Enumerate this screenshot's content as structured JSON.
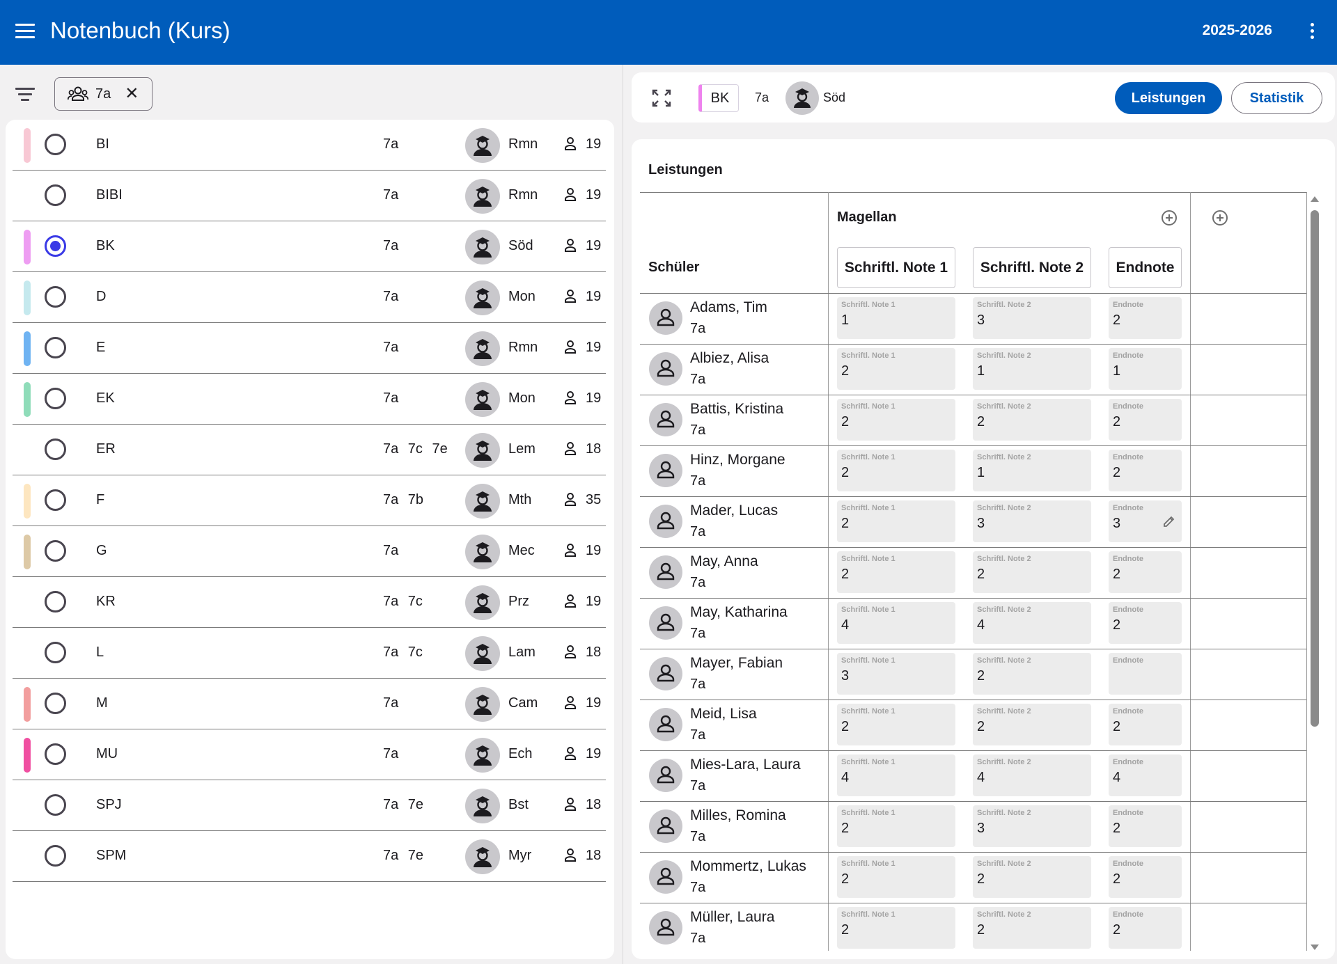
{
  "app": {
    "title": "Notenbuch (Kurs)",
    "school_year": "2025-2026",
    "icons": {
      "menu": "menu-icon",
      "more": "more-vert-icon"
    },
    "colors": {
      "primary": "#005cbb",
      "selected": "#3a3ae6"
    }
  },
  "filter": {
    "chip_label": "7a",
    "icons": {
      "filter": "filter-list-icon",
      "group": "group-icon",
      "close": "close-icon"
    }
  },
  "courses": [
    {
      "subject": "BI",
      "classes": "7a",
      "teacher": "Rmn",
      "count": "19",
      "color": "#f8c8d4",
      "selected": false
    },
    {
      "subject": "BIBI",
      "classes": "7a",
      "teacher": "Rmn",
      "count": "19",
      "color": null,
      "selected": false
    },
    {
      "subject": "BK",
      "classes": "7a",
      "teacher": "Söd",
      "count": "19",
      "color": "#ee9df2",
      "selected": true
    },
    {
      "subject": "D",
      "classes": "7a",
      "teacher": "Mon",
      "count": "19",
      "color": "#c5e9ee",
      "selected": false
    },
    {
      "subject": "E",
      "classes": "7a",
      "teacher": "Rmn",
      "count": "19",
      "color": "#6fb3f2",
      "selected": false
    },
    {
      "subject": "EK",
      "classes": "7a",
      "teacher": "Mon",
      "count": "19",
      "color": "#8fdcb9",
      "selected": false
    },
    {
      "subject": "ER",
      "classes": "7a 7c 7e",
      "teacher": "Lem",
      "count": "18",
      "color": null,
      "selected": false
    },
    {
      "subject": "F",
      "classes": "7a 7b",
      "teacher": "Mth",
      "count": "35",
      "color": "#fde6c0",
      "selected": false
    },
    {
      "subject": "G",
      "classes": "7a",
      "teacher": "Mec",
      "count": "19",
      "color": "#ddc9a6",
      "selected": false
    },
    {
      "subject": "KR",
      "classes": "7a 7c",
      "teacher": "Prz",
      "count": "19",
      "color": null,
      "selected": false
    },
    {
      "subject": "L",
      "classes": "7a 7c",
      "teacher": "Lam",
      "count": "18",
      "color": null,
      "selected": false
    },
    {
      "subject": "M",
      "classes": "7a",
      "teacher": "Cam",
      "count": "19",
      "color": "#f29e9e",
      "selected": false
    },
    {
      "subject": "MU",
      "classes": "7a",
      "teacher": "Ech",
      "count": "19",
      "color": "#f04fa1",
      "selected": false
    },
    {
      "subject": "SPJ",
      "classes": "7a 7e",
      "teacher": "Bst",
      "count": "18",
      "color": null,
      "selected": false
    },
    {
      "subject": "SPM",
      "classes": "7a 7e",
      "teacher": "Myr",
      "count": "18",
      "color": null,
      "selected": false
    }
  ],
  "course_detail": {
    "chip": "BK",
    "class": "7a",
    "teacher": "Söd",
    "buttons": {
      "leistungen": "Leistungen",
      "statistik": "Statistik"
    },
    "icons": {
      "expand": "fullscreen-icon",
      "teacher": "teacher-avatar-icon"
    }
  },
  "grades": {
    "section_title": "Leistungen",
    "group_title": "Magellan",
    "pupil_header": "Schüler",
    "columns": [
      "Schriftl. Note 1",
      "Schriftl. Note 2",
      "Endnote"
    ],
    "field_labels": [
      "Schriftl. Note 1",
      "Schriftl. Note 2",
      "Endnote"
    ],
    "rows": [
      {
        "name": "Adams, Tim",
        "class": "7a",
        "values": [
          "1",
          "3",
          "2"
        ]
      },
      {
        "name": "Albiez, Alisa",
        "class": "7a",
        "values": [
          "2",
          "1",
          "1"
        ]
      },
      {
        "name": "Battis, Kristina",
        "class": "7a",
        "values": [
          "2",
          "2",
          "2"
        ]
      },
      {
        "name": "Hinz, Morgane",
        "class": "7a",
        "values": [
          "2",
          "1",
          "2"
        ]
      },
      {
        "name": "Mader, Lucas",
        "class": "7a",
        "values": [
          "2",
          "3",
          "3"
        ]
      },
      {
        "name": "May, Anna",
        "class": "7a",
        "values": [
          "2",
          "2",
          "2"
        ]
      },
      {
        "name": "May, Katharina",
        "class": "7a",
        "values": [
          "4",
          "4",
          "2"
        ]
      },
      {
        "name": "Mayer, Fabian",
        "class": "7a",
        "values": [
          "3",
          "2",
          ""
        ]
      },
      {
        "name": "Meid, Lisa",
        "class": "7a",
        "values": [
          "2",
          "2",
          "2"
        ]
      },
      {
        "name": "Mies-Lara, Laura",
        "class": "7a",
        "values": [
          "4",
          "4",
          "4"
        ]
      },
      {
        "name": "Milles, Romina",
        "class": "7a",
        "values": [
          "2",
          "3",
          "2"
        ]
      },
      {
        "name": "Mommertz, Lukas",
        "class": "7a",
        "values": [
          "2",
          "2",
          "2"
        ]
      },
      {
        "name": "Müller, Laura",
        "class": "7a",
        "values": [
          "2",
          "2",
          "2"
        ]
      }
    ],
    "icons": {
      "add": "add-circle-icon",
      "edit": "edit-icon",
      "pupil": "person-avatar-icon"
    }
  }
}
